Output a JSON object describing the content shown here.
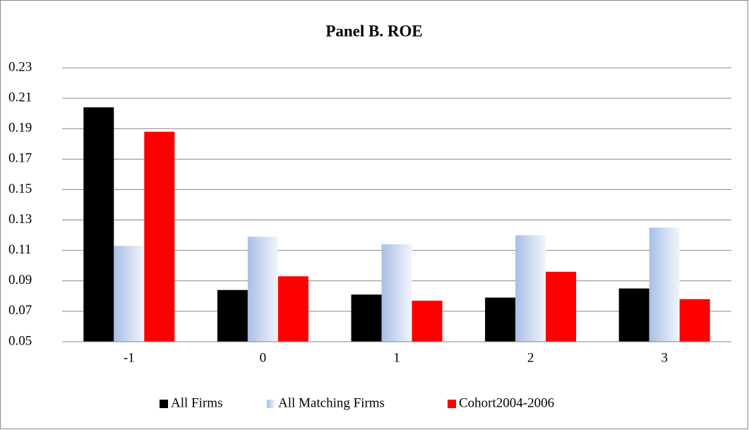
{
  "chart_data": {
    "type": "bar",
    "title": "Panel B. ROE",
    "categories": [
      "-1",
      "0",
      "1",
      "2",
      "3"
    ],
    "series": [
      {
        "name": "All Firms",
        "color": "#000000",
        "values": [
          0.204,
          0.084,
          0.081,
          0.079,
          0.085
        ]
      },
      {
        "name": "All Matching Firms",
        "color": "#a9bfe6",
        "values": [
          0.113,
          0.119,
          0.114,
          0.12,
          0.125
        ]
      },
      {
        "name": "Cohort2004-2006",
        "color": "#ff0000",
        "values": [
          0.188,
          0.093,
          0.077,
          0.096,
          0.078
        ]
      }
    ],
    "ylim": [
      0.05,
      0.23
    ],
    "yticks": [
      0.05,
      0.07,
      0.09,
      0.11,
      0.13,
      0.15,
      0.17,
      0.19,
      0.21,
      0.23
    ],
    "grid": true,
    "legend": "bottom"
  }
}
